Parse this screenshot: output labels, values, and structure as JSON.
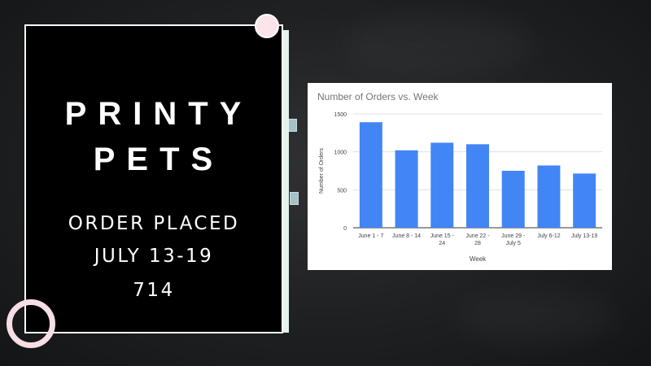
{
  "poster": {
    "brand_line1": "PRINTY",
    "brand_line2": "PETS",
    "info_line1": "ORDER PLACED",
    "info_line2": "JULY 13-19",
    "info_line3": "714"
  },
  "colors": {
    "background": "#1e2022",
    "card": "#000000",
    "card_accent": "#e3f3ea",
    "pin": "#fbe4ea",
    "bar": "#4285f4"
  },
  "chart_data": {
    "type": "bar",
    "title": "Number of Orders vs. Week",
    "xlabel": "Week",
    "ylabel": "Number of Orders",
    "categories": [
      [
        "June 1 - 7"
      ],
      [
        "June 8 - 14"
      ],
      [
        "June 15 -",
        "24"
      ],
      [
        "June 22 -",
        "28"
      ],
      [
        "June 29 -",
        "July 5"
      ],
      [
        "July 6-12"
      ],
      [
        "July 13-19"
      ]
    ],
    "values": [
      1390,
      1020,
      1120,
      1100,
      750,
      820,
      714
    ],
    "ylim": [
      0,
      1500
    ],
    "yticks": [
      0,
      500,
      1000,
      1500
    ],
    "grid": true,
    "bar_color": "#4285f4"
  }
}
